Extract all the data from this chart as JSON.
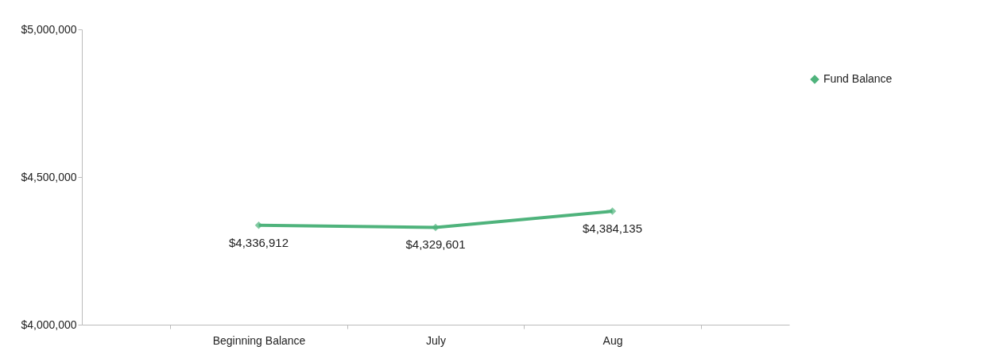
{
  "chart_data": {
    "type": "line",
    "categories": [
      "Beginning Balance",
      "July",
      "Aug"
    ],
    "series": [
      {
        "name": "Fund Balance",
        "color": "#4fb37c",
        "values": [
          4336912,
          4329601,
          4384135
        ],
        "value_labels": [
          "$4,336,912",
          "$4,329,601",
          "$4,384,135"
        ]
      }
    ],
    "ylim": [
      4000000,
      5000000
    ],
    "yticks": [
      {
        "value": 4000000,
        "label": "$4,000,000"
      },
      {
        "value": 4500000,
        "label": "$4,500,000"
      },
      {
        "value": 5000000,
        "label": "$5,000,000"
      }
    ],
    "marker": "diamond",
    "line_style": "solid",
    "legend": "right",
    "grid": false
  }
}
